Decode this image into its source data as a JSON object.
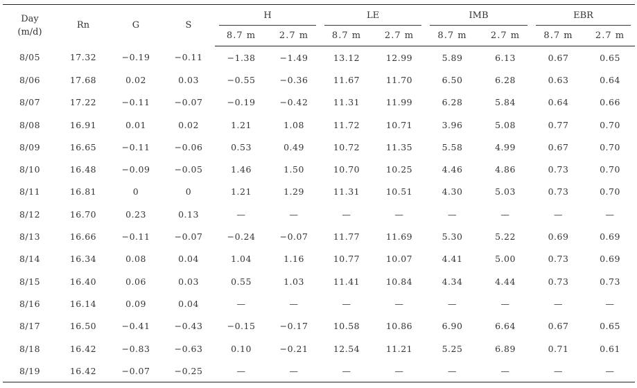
{
  "table": {
    "headers": {
      "day": "Day",
      "day_unit": "(m/d)",
      "rn": "Rn",
      "g": "G",
      "s": "S",
      "groups": [
        "H",
        "LE",
        "IMB",
        "EBR"
      ],
      "heights": [
        "8.7 m",
        "2.7 m"
      ]
    },
    "rows": [
      [
        "8/05",
        "17.32",
        "−0.19",
        "−0.11",
        "−1.38",
        "−1.49",
        "13.12",
        "12.99",
        "5.89",
        "6.13",
        "0.67",
        "0.65"
      ],
      [
        "8/06",
        "17.68",
        "0.02",
        "0.03",
        "−0.55",
        "−0.36",
        "11.67",
        "11.70",
        "6.50",
        "6.28",
        "0.63",
        "0.64"
      ],
      [
        "8/07",
        "17.22",
        "−0.11",
        "−0.07",
        "−0.19",
        "−0.42",
        "11.31",
        "11.99",
        "6.28",
        "5.84",
        "0.64",
        "0.66"
      ],
      [
        "8/08",
        "16.91",
        "0.01",
        "0.02",
        "1.21",
        "1.08",
        "11.72",
        "10.71",
        "3.96",
        "5.08",
        "0.77",
        "0.70"
      ],
      [
        "8/09",
        "16.65",
        "−0.11",
        "−0.06",
        "0.53",
        "0.49",
        "10.72",
        "11.35",
        "5.58",
        "4.99",
        "0.67",
        "0.70"
      ],
      [
        "8/10",
        "16.48",
        "−0.09",
        "−0.05",
        "1.46",
        "1.50",
        "10.70",
        "10.25",
        "4.46",
        "4.86",
        "0.73",
        "0.70"
      ],
      [
        "8/11",
        "16.81",
        "0",
        "0",
        "1.21",
        "1.29",
        "11.31",
        "10.51",
        "4.30",
        "5.03",
        "0.73",
        "0.70"
      ],
      [
        "8/12",
        "16.70",
        "0.23",
        "0.13",
        "—",
        "—",
        "—",
        "—",
        "—",
        "—",
        "—",
        "—"
      ],
      [
        "8/13",
        "16.66",
        "−0.11",
        "−0.07",
        "−0.24",
        "−0.07",
        "11.77",
        "11.69",
        "5.30",
        "5.22",
        "0.69",
        "0.69"
      ],
      [
        "8/14",
        "16.34",
        "0.08",
        "0.04",
        "1.04",
        "1.16",
        "10.77",
        "10.07",
        "4.41",
        "5.00",
        "0.73",
        "0.69"
      ],
      [
        "8/15",
        "16.40",
        "0.06",
        "0.03",
        "0.55",
        "1.03",
        "11.41",
        "10.84",
        "4.34",
        "4.44",
        "0.73",
        "0.73"
      ],
      [
        "8/16",
        "16.14",
        "0.09",
        "0.04",
        "—",
        "—",
        "—",
        "—",
        "—",
        "—",
        "—",
        "—"
      ],
      [
        "8/17",
        "16.50",
        "−0.41",
        "−0.43",
        "−0.15",
        "−0.17",
        "10.58",
        "10.86",
        "6.90",
        "6.64",
        "0.67",
        "0.65"
      ],
      [
        "8/18",
        "16.42",
        "−0.83",
        "−0.63",
        "0.10",
        "−0.21",
        "12.54",
        "11.21",
        "5.25",
        "6.89",
        "0.71",
        "0.61"
      ],
      [
        "8/19",
        "16.42",
        "−0.07",
        "−0.25",
        "—",
        "—",
        "—",
        "—",
        "—",
        "—",
        "—",
        "—"
      ]
    ]
  }
}
